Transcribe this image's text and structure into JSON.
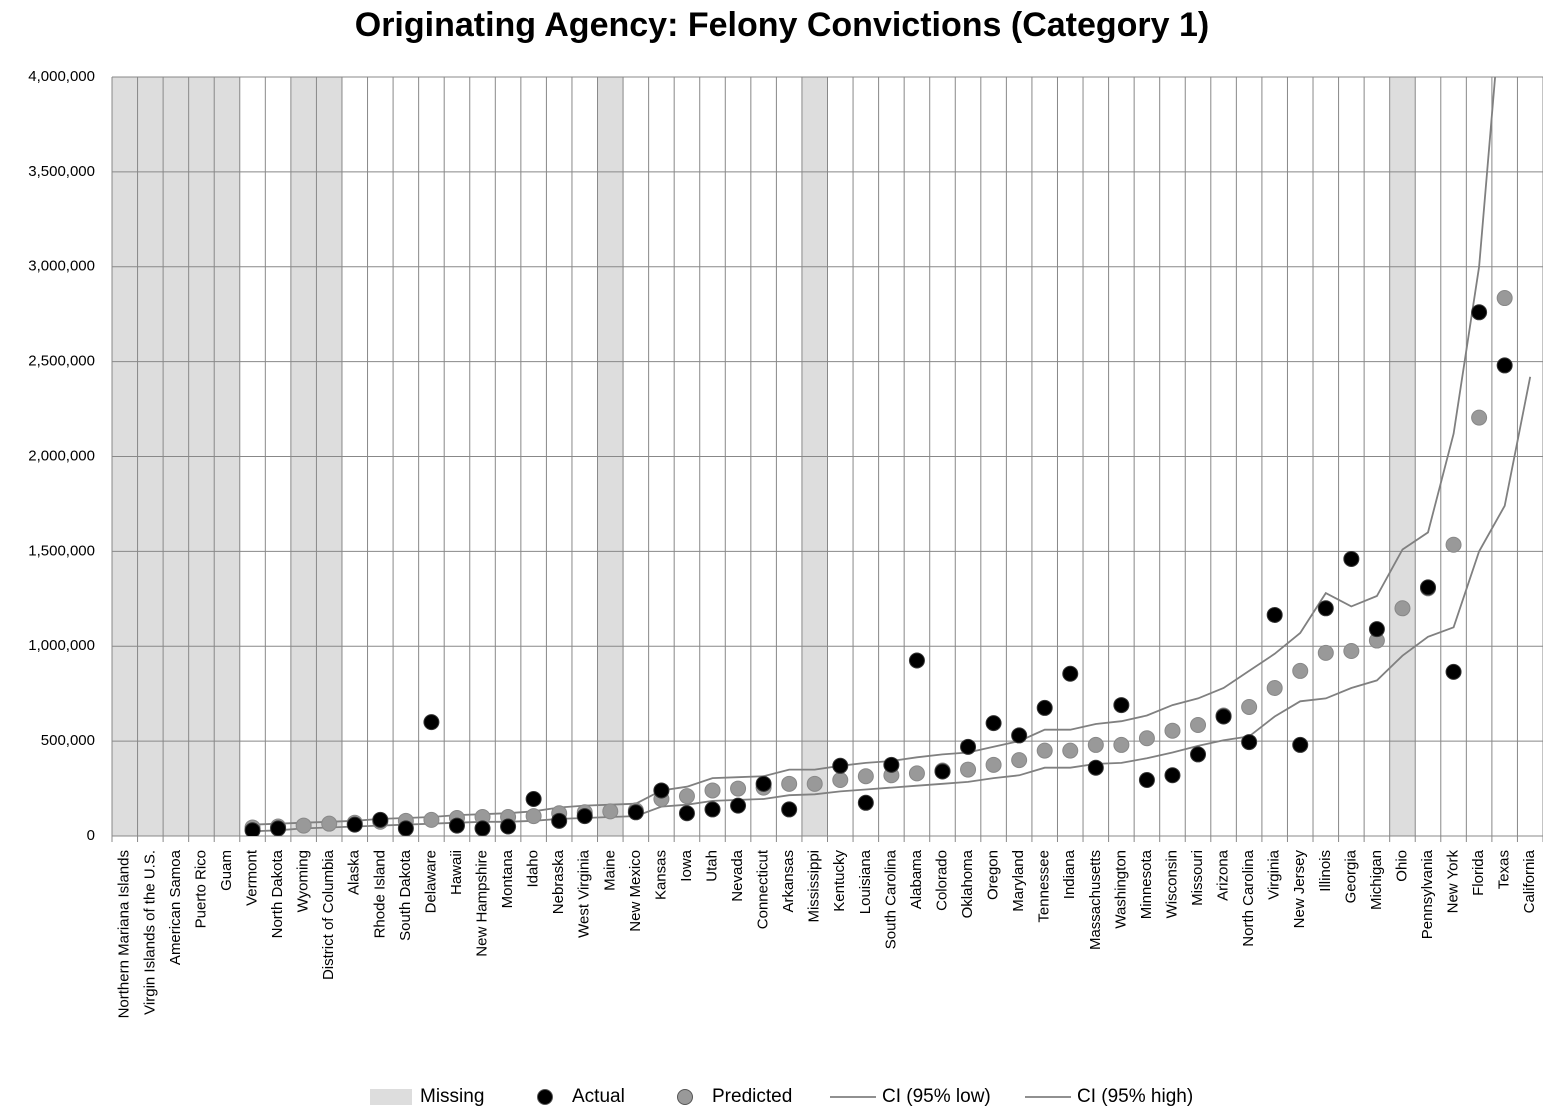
{
  "chart_data": {
    "type": "line",
    "title": "Originating Agency: Felony Convictions (Category 1)",
    "categories": [
      "Northern Mariana Islands",
      "Virgin Islands of the U.S.",
      "American Samoa",
      "Puerto Rico",
      "Guam",
      "Vermont",
      "North Dakota",
      "Wyoming",
      "District of Columbia",
      "Alaska",
      "Rhode Island",
      "South Dakota",
      "Delaware",
      "Hawaii",
      "New Hampshire",
      "Montana",
      "Idaho",
      "Nebraska",
      "West Virginia",
      "Maine",
      "New Mexico",
      "Kansas",
      "Iowa",
      "Utah",
      "Nevada",
      "Connecticut",
      "Arkansas",
      "Mississippi",
      "Kentucky",
      "Louisiana",
      "South Carolina",
      "Alabama",
      "Colorado",
      "Oklahoma",
      "Oregon",
      "Maryland",
      "Tennessee",
      "Indiana",
      "Massachusetts",
      "Washington",
      "Minnesota",
      "Wisconsin",
      "Missouri",
      "Arizona",
      "North Carolina",
      "Virginia",
      "New Jersey",
      "Illinois",
      "Georgia",
      "Michigan",
      "Ohio",
      "Pennsylvania",
      "New York",
      "Florida",
      "Texas",
      "California"
    ],
    "series": [
      {
        "name": "Missing",
        "kind": "bar",
        "color": "#dddddd",
        "values": [
          4000000,
          4000000,
          4000000,
          4000000,
          4000000,
          null,
          null,
          4000000,
          4000000,
          null,
          null,
          null,
          null,
          null,
          null,
          null,
          null,
          null,
          null,
          4000000,
          null,
          null,
          null,
          null,
          null,
          null,
          null,
          4000000,
          null,
          null,
          null,
          null,
          null,
          null,
          null,
          null,
          null,
          null,
          null,
          null,
          null,
          null,
          null,
          null,
          null,
          null,
          null,
          null,
          null,
          null,
          4000000,
          null,
          null,
          null,
          null,
          null
        ]
      },
      {
        "name": "Actual",
        "kind": "marker",
        "color": "#000000",
        "values": [
          null,
          null,
          null,
          null,
          null,
          30000,
          40000,
          null,
          null,
          60000,
          85000,
          40000,
          600000,
          55000,
          40000,
          50000,
          195000,
          80000,
          105000,
          null,
          125000,
          240000,
          120000,
          140000,
          160000,
          275000,
          140000,
          null,
          370000,
          175000,
          375000,
          925000,
          340000,
          470000,
          595000,
          530000,
          675000,
          855000,
          360000,
          690000,
          295000,
          320000,
          430000,
          630000,
          495000,
          1165000,
          480000,
          1200000,
          1460000,
          1090000,
          null,
          1310000,
          865000,
          2760000,
          2480000,
          null
        ]
      },
      {
        "name": "Predicted",
        "kind": "marker",
        "color": "#999999",
        "values": [
          null,
          null,
          null,
          null,
          null,
          45000,
          50000,
          55000,
          65000,
          70000,
          75000,
          80000,
          85000,
          95000,
          100000,
          100000,
          105000,
          120000,
          125000,
          130000,
          135000,
          195000,
          210000,
          240000,
          250000,
          255000,
          275000,
          275000,
          295000,
          315000,
          320000,
          330000,
          345000,
          350000,
          375000,
          400000,
          450000,
          450000,
          480000,
          480000,
          515000,
          555000,
          585000,
          635000,
          680000,
          780000,
          870000,
          965000,
          975000,
          1030000,
          1200000,
          1305000,
          1535000,
          2205000,
          2835000,
          null
        ]
      },
      {
        "name": "CI (95% low)",
        "kind": "line",
        "color": "#808080",
        "values": [
          null,
          null,
          null,
          null,
          null,
          25000,
          30000,
          40000,
          45000,
          50000,
          55000,
          60000,
          65000,
          70000,
          75000,
          75000,
          80000,
          90000,
          95000,
          100000,
          105000,
          155000,
          165000,
          185000,
          190000,
          195000,
          215000,
          220000,
          235000,
          245000,
          255000,
          265000,
          275000,
          285000,
          305000,
          320000,
          360000,
          360000,
          380000,
          385000,
          410000,
          440000,
          475000,
          505000,
          525000,
          630000,
          710000,
          725000,
          780000,
          820000,
          950000,
          1050000,
          1100000,
          1500000,
          1740000,
          2420000
        ]
      },
      {
        "name": "CI (95% high)",
        "kind": "line",
        "color": "#808080",
        "values": [
          null,
          null,
          null,
          null,
          null,
          60000,
          65000,
          70000,
          75000,
          80000,
          90000,
          95000,
          100000,
          110000,
          115000,
          120000,
          130000,
          150000,
          160000,
          165000,
          170000,
          240000,
          260000,
          305000,
          310000,
          315000,
          350000,
          350000,
          370000,
          385000,
          395000,
          415000,
          430000,
          440000,
          470000,
          500000,
          560000,
          560000,
          590000,
          605000,
          635000,
          690000,
          725000,
          780000,
          870000,
          960000,
          1070000,
          1280000,
          1210000,
          1265000,
          1510000,
          1600000,
          2120000,
          3000000,
          4600000,
          null
        ]
      }
    ],
    "ylim": [
      0,
      4000000
    ],
    "yticks": [
      0,
      {
        "value": 500000,
        "label": "500,000"
      },
      {
        "value": 1000000,
        "label": "1,000,000"
      },
      {
        "value": 1500000,
        "label": "1,500,000"
      },
      {
        "value": 2000000,
        "label": "2,000,000"
      },
      {
        "value": 2500000,
        "label": "2,500,000"
      },
      {
        "value": 3000000,
        "label": "3,000,000"
      },
      {
        "value": 3500000,
        "label": "3,500,000"
      },
      {
        "value": 4000000,
        "label": "4,000,000"
      }
    ],
    "grid": true,
    "legend": "bottom"
  }
}
